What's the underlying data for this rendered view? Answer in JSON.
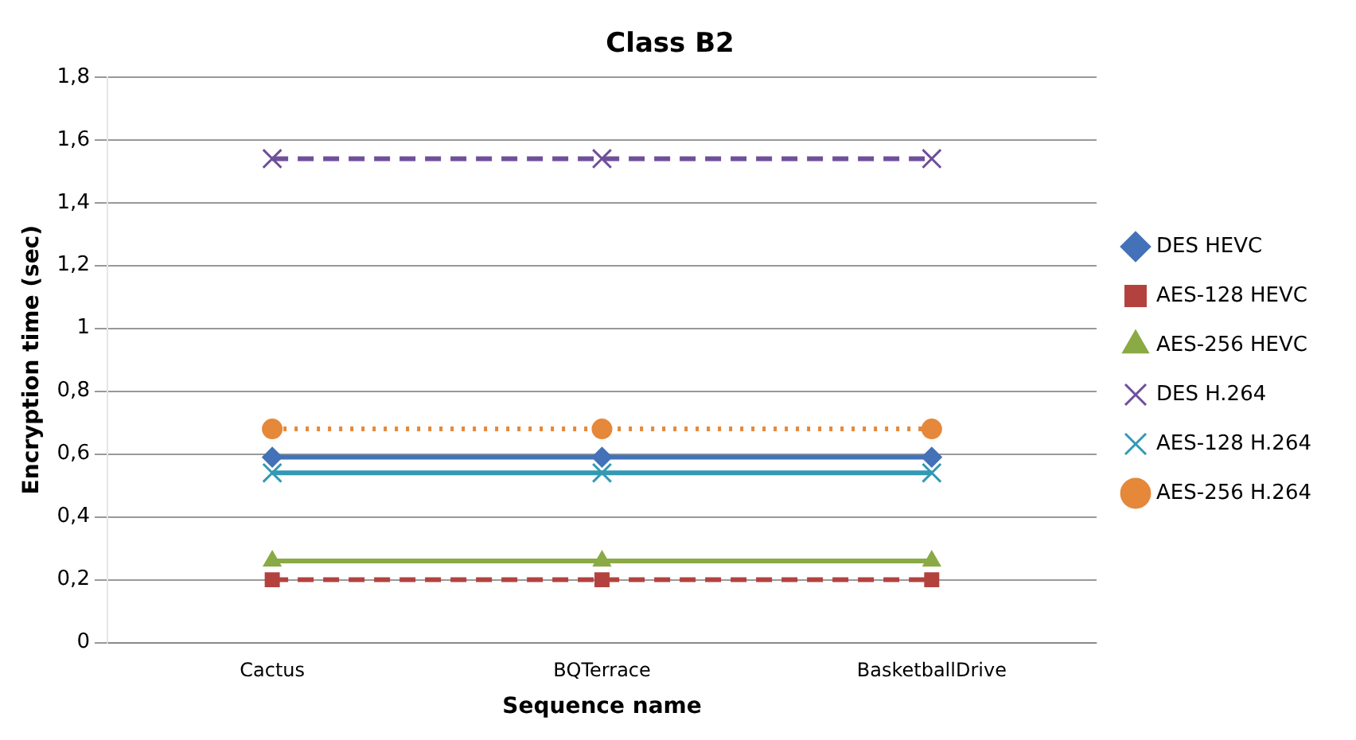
{
  "chart_data": {
    "type": "line",
    "title": "Class B2",
    "xlabel": "Sequence name",
    "ylabel": "Encryption time (sec)",
    "categories": [
      "Cactus",
      "BQTerrace",
      "BasketballDrive"
    ],
    "series": [
      {
        "name": "DES HEVC",
        "color": "#4372b8",
        "marker": "diamond",
        "line_style": "solid",
        "values": [
          0.59,
          0.59,
          0.59
        ]
      },
      {
        "name": "AES-128 HEVC",
        "color": "#b3423f",
        "marker": "square",
        "line_style": "dashed",
        "values": [
          0.2,
          0.2,
          0.2
        ]
      },
      {
        "name": "AES-256 HEVC",
        "color": "#8aaa45",
        "marker": "triangle",
        "line_style": "solid",
        "values": [
          0.26,
          0.26,
          0.26
        ]
      },
      {
        "name": "DES H.264",
        "color": "#6f4f9a",
        "marker": "cross",
        "line_style": "dashed",
        "values": [
          1.54,
          1.54,
          1.54
        ]
      },
      {
        "name": "AES-128 H.264",
        "color": "#3399b3",
        "marker": "cross",
        "line_style": "solid",
        "values": [
          0.54,
          0.54,
          0.54
        ]
      },
      {
        "name": "AES-256 H.264",
        "color": "#e5883a",
        "marker": "circle",
        "line_style": "dotted",
        "values": [
          0.68,
          0.68,
          0.68
        ]
      }
    ],
    "ylim": [
      0,
      1.8
    ],
    "yticks": [
      0,
      {
        "value": 0.2,
        "label": "0,2"
      },
      {
        "value": 0.4,
        "label": "0,4"
      },
      {
        "value": 0.6,
        "label": "0,6"
      },
      {
        "value": 0.8,
        "label": "0,8"
      },
      1,
      {
        "value": 1.2,
        "label": "1,2"
      },
      {
        "value": 1.4,
        "label": "1,4"
      },
      {
        "value": 1.6,
        "label": "1,6"
      },
      {
        "value": 1.8,
        "label": "1,8"
      }
    ],
    "grid": "y",
    "legend": "right"
  }
}
